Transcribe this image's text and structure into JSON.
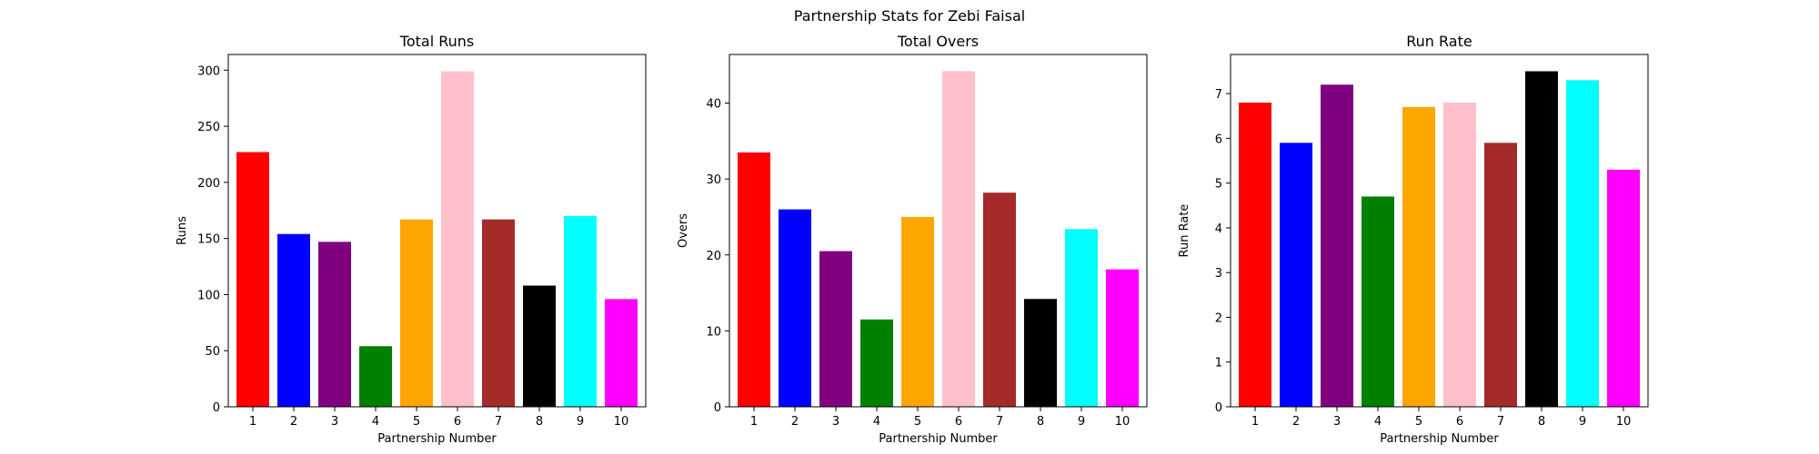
{
  "suptitle": "Partnership Stats for Zebi Faisal",
  "bar_colors": [
    "#ff0000",
    "#0000ff",
    "#800080",
    "#008000",
    "#ffa500",
    "#ffc0cb",
    "#a52a2a",
    "#000000",
    "#00ffff",
    "#ff00ff"
  ],
  "chart_data": [
    {
      "type": "bar",
      "title": "Total Runs",
      "xlabel": "Partnership Number",
      "ylabel": "Runs",
      "categories": [
        "1",
        "2",
        "3",
        "4",
        "5",
        "6",
        "7",
        "8",
        "9",
        "10"
      ],
      "values": [
        227,
        154,
        147,
        54,
        167,
        299,
        167,
        108,
        170,
        96
      ],
      "ylim": [
        0,
        314
      ],
      "yticks": [
        0,
        50,
        100,
        150,
        200,
        250,
        300
      ]
    },
    {
      "type": "bar",
      "title": "Total Overs",
      "xlabel": "Partnership Number",
      "ylabel": "Overs",
      "categories": [
        "1",
        "2",
        "3",
        "4",
        "5",
        "6",
        "7",
        "8",
        "9",
        "10"
      ],
      "values": [
        33.5,
        26,
        20.5,
        11.5,
        25,
        44.2,
        28.2,
        14.2,
        23.4,
        18.1
      ],
      "ylim": [
        0,
        46.4
      ],
      "yticks": [
        0,
        10,
        20,
        30,
        40
      ]
    },
    {
      "type": "bar",
      "title": "Run Rate",
      "xlabel": "Partnership Number",
      "ylabel": "Run Rate",
      "categories": [
        "1",
        "2",
        "3",
        "4",
        "5",
        "6",
        "7",
        "8",
        "9",
        "10"
      ],
      "values": [
        6.8,
        5.9,
        7.2,
        4.7,
        6.7,
        6.8,
        5.9,
        7.5,
        7.3,
        5.3
      ],
      "ylim": [
        0,
        7.875
      ],
      "yticks": [
        0,
        1,
        2,
        3,
        4,
        5,
        6,
        7
      ]
    }
  ]
}
